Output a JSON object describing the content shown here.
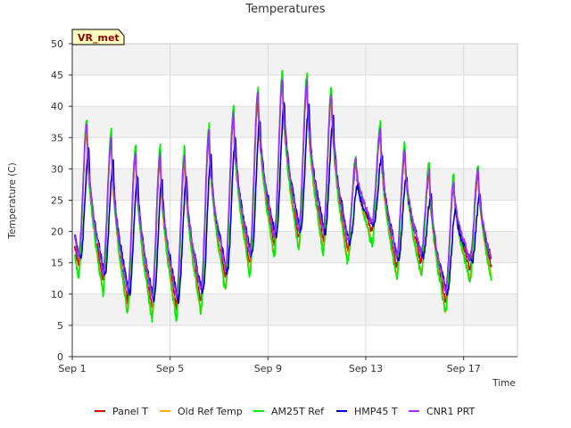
{
  "chart_data": {
    "type": "line",
    "title": "Temperatures",
    "xlabel": "Time",
    "ylabel": "Temperature (C)",
    "badge": "VR_met",
    "ylim": [
      0,
      50
    ],
    "xlim": [
      0,
      18.2
    ],
    "yticks": [
      0,
      5,
      10,
      15,
      20,
      25,
      30,
      35,
      40,
      45,
      50
    ],
    "xticks": [
      {
        "x": 0,
        "label": "Sep 1"
      },
      {
        "x": 4,
        "label": "Sep 5"
      },
      {
        "x": 8,
        "label": "Sep 9"
      },
      {
        "x": 12,
        "label": "Sep 13"
      },
      {
        "x": 16,
        "label": "Sep 17"
      }
    ],
    "grid": true,
    "legend_position": "bottom",
    "x_units": "days since Sep 1",
    "daily_extremes": [
      {
        "min": 14.5,
        "max": 36.0
      },
      {
        "min": 12.0,
        "max": 34.0
      },
      {
        "min": 9.0,
        "max": 32.0
      },
      {
        "min": 8.0,
        "max": 31.5
      },
      {
        "min": 8.0,
        "max": 31.5
      },
      {
        "min": 9.0,
        "max": 35.0
      },
      {
        "min": 12.5,
        "max": 38.0
      },
      {
        "min": 15.0,
        "max": 41.0
      },
      {
        "min": 18.0,
        "max": 43.5
      },
      {
        "min": 19.0,
        "max": 43.0
      },
      {
        "min": 18.5,
        "max": 41.0
      },
      {
        "min": 17.0,
        "max": 30.5
      },
      {
        "min": 20.0,
        "max": 35.5
      },
      {
        "min": 14.5,
        "max": 32.0
      },
      {
        "min": 15.0,
        "max": 29.0
      },
      {
        "min": 9.0,
        "max": 27.0
      },
      {
        "min": 14.0,
        "max": 29.0
      },
      {
        "min": 12.0,
        "max": 12.0
      }
    ],
    "series": [
      {
        "name": "Panel T",
        "color": "#dd0000",
        "max_offset": 0.0,
        "min_offset": 0.0,
        "amp_scale": 1.0,
        "lag": 0.0,
        "seed": 1
      },
      {
        "name": "Old Ref Temp",
        "color": "#ffa500",
        "max_offset": 1.0,
        "min_offset": -1.5,
        "amp_scale": 1.0,
        "lag": 0.0,
        "seed": 2
      },
      {
        "name": "AM25T Ref",
        "color": "#00ee00",
        "max_offset": 2.0,
        "min_offset": -2.0,
        "amp_scale": 1.0,
        "lag": 0.0,
        "seed": 3
      },
      {
        "name": "HMP45 T",
        "color": "#0000cc",
        "max_offset": -3.0,
        "min_offset": 1.0,
        "amp_scale": 1.0,
        "lag": 0.08,
        "seed": 4
      },
      {
        "name": "CNR1 PRT",
        "color": "#9b30ff",
        "max_offset": 0.8,
        "min_offset": 1.5,
        "amp_scale": 1.0,
        "lag": 0.0,
        "seed": 5
      }
    ]
  }
}
